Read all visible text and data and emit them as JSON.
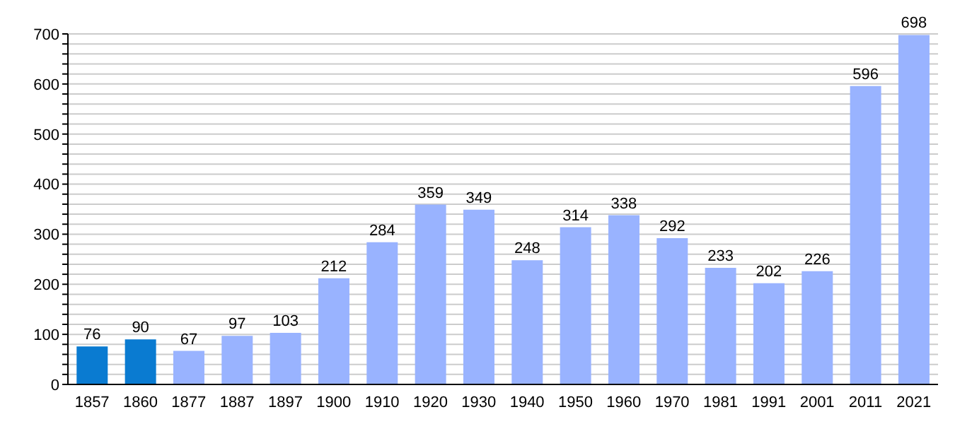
{
  "chart_data": {
    "type": "bar",
    "categories": [
      "1857",
      "1860",
      "1877",
      "1887",
      "1897",
      "1900",
      "1910",
      "1920",
      "1930",
      "1940",
      "1950",
      "1960",
      "1970",
      "1981",
      "1991",
      "2001",
      "2011",
      "2021"
    ],
    "values": [
      76,
      90,
      67,
      97,
      103,
      212,
      284,
      359,
      349,
      248,
      314,
      338,
      292,
      233,
      202,
      226,
      596,
      698
    ],
    "colors": [
      "#0a7bd1",
      "#0a7bd1",
      "#99b3ff",
      "#99b3ff",
      "#99b3ff",
      "#99b3ff",
      "#99b3ff",
      "#99b3ff",
      "#99b3ff",
      "#99b3ff",
      "#99b3ff",
      "#99b3ff",
      "#99b3ff",
      "#99b3ff",
      "#99b3ff",
      "#99b3ff",
      "#99b3ff",
      "#99b3ff"
    ],
    "ylim": [
      0,
      700
    ],
    "yticks": [
      0,
      {
        "value": 20,
        "label": null
      },
      {
        "value": 40,
        "label": null
      },
      {
        "value": 60,
        "label": null
      },
      {
        "value": 80,
        "label": null
      },
      100,
      {
        "value": 120,
        "label": null
      },
      {
        "value": 140,
        "label": null
      },
      {
        "value": 160,
        "label": null
      },
      {
        "value": 180,
        "label": null
      },
      200,
      {
        "value": 220,
        "label": null
      },
      {
        "value": 240,
        "label": null
      },
      {
        "value": 260,
        "label": null
      },
      {
        "value": 280,
        "label": null
      },
      300,
      {
        "value": 320,
        "label": null
      },
      {
        "value": 340,
        "label": null
      },
      {
        "value": 360,
        "label": null
      },
      {
        "value": 380,
        "label": null
      },
      400,
      {
        "value": 420,
        "label": null
      },
      {
        "value": 440,
        "label": null
      },
      {
        "value": 460,
        "label": null
      },
      {
        "value": 480,
        "label": null
      },
      500,
      {
        "value": 520,
        "label": null
      },
      {
        "value": 540,
        "label": null
      },
      {
        "value": 560,
        "label": null
      },
      {
        "value": 580,
        "label": null
      },
      600,
      {
        "value": 620,
        "label": null
      },
      {
        "value": 640,
        "label": null
      },
      {
        "value": 660,
        "label": null
      },
      {
        "value": 680,
        "label": null
      },
      700
    ],
    "grid": "y",
    "data_labels": true
  }
}
